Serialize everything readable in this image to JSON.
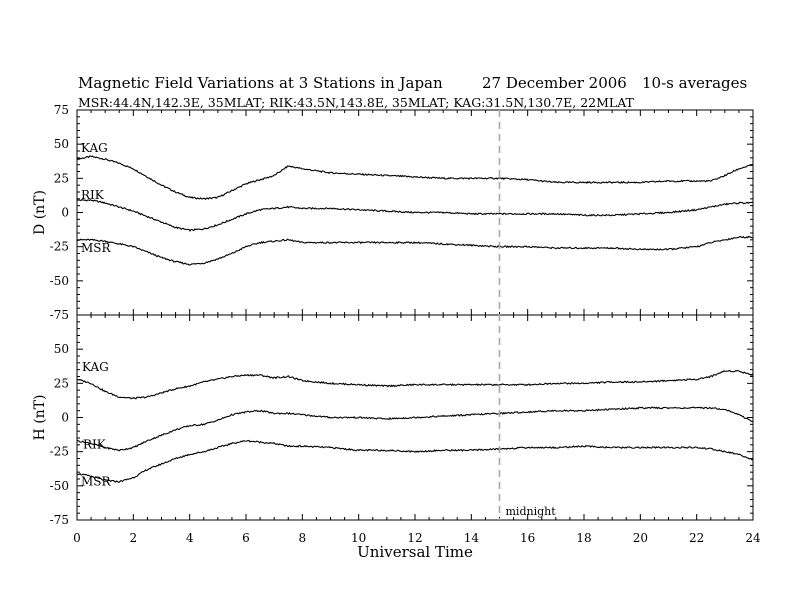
{
  "header": {
    "title": "Magnetic Field Variations at 3 Stations in Japan",
    "date": "27 December 2006",
    "averaging": "10-s averages",
    "stations_info": "MSR:44.4N,142.3E, 35MLAT;   RIK:43.5N,143.8E, 35MLAT;   KAG:31.5N,130.7E, 22MLAT"
  },
  "chart_data": [
    {
      "type": "line",
      "panel": "top",
      "ylabel": "D (nT)",
      "ylim": [
        -75,
        75
      ],
      "yticks": [
        -75,
        -50,
        -25,
        0,
        25,
        50,
        75
      ],
      "xlim": [
        0,
        24
      ],
      "x": [
        0,
        0.5,
        1,
        1.5,
        2,
        2.5,
        3,
        3.5,
        4,
        4.5,
        5,
        5.5,
        6,
        6.5,
        7,
        7.5,
        8,
        9,
        10,
        11,
        12,
        13,
        14,
        15,
        16,
        17,
        18,
        19,
        20,
        21,
        22,
        22.5,
        23,
        23.5,
        24
      ],
      "series": [
        {
          "name": "KAG",
          "values": [
            39,
            41,
            39,
            36,
            32,
            26,
            20,
            15,
            11,
            10,
            11,
            16,
            21,
            24,
            27,
            34,
            32,
            29,
            28,
            27,
            26,
            25,
            25,
            25,
            24,
            22,
            22,
            22,
            22,
            23,
            23,
            23,
            27,
            32,
            35
          ]
        },
        {
          "name": "RIK",
          "values": [
            9,
            9,
            7,
            4,
            1,
            -3,
            -7,
            -11,
            -13,
            -12,
            -9,
            -5,
            -1,
            2,
            3,
            4,
            3,
            3,
            2,
            1,
            0,
            0,
            -1,
            -1,
            -1,
            -1,
            -2,
            -2,
            -1,
            0,
            2,
            4,
            6,
            7,
            7
          ]
        },
        {
          "name": "MSR",
          "values": [
            -20,
            -20,
            -21,
            -23,
            -25,
            -29,
            -33,
            -36,
            -38,
            -37,
            -34,
            -30,
            -25,
            -22,
            -21,
            -20,
            -22,
            -22,
            -22,
            -22,
            -22,
            -23,
            -24,
            -25,
            -25,
            -26,
            -26,
            -26,
            -27,
            -27,
            -25,
            -22,
            -20,
            -18,
            -18
          ]
        }
      ],
      "annotations": []
    },
    {
      "type": "line",
      "panel": "bottom",
      "ylabel": "H (nT)",
      "ylim": [
        -75,
        75
      ],
      "yticks": [
        -75,
        -50,
        -25,
        0,
        25,
        50
      ],
      "xlim": [
        0,
        24
      ],
      "xticks": [
        0,
        2,
        4,
        6,
        8,
        10,
        12,
        14,
        16,
        18,
        20,
        22,
        24
      ],
      "xlabel": "Universal Time",
      "x": [
        0,
        0.5,
        1,
        1.5,
        2,
        2.5,
        3,
        3.5,
        4,
        4.5,
        5,
        5.5,
        6,
        6.5,
        7,
        7.5,
        8,
        9,
        10,
        11,
        12,
        13,
        14,
        15,
        16,
        17,
        18,
        19,
        20,
        21,
        22,
        22.5,
        23,
        23.5,
        24
      ],
      "series": [
        {
          "name": "KAG",
          "values": [
            28,
            25,
            19,
            15,
            14,
            15,
            18,
            21,
            23,
            26,
            28,
            30,
            31,
            31,
            29,
            30,
            27,
            25,
            24,
            23,
            24,
            24,
            24,
            24,
            24,
            25,
            25,
            26,
            26,
            27,
            28,
            30,
            34,
            34,
            31
          ]
        },
        {
          "name": "RIK",
          "values": [
            -17,
            -19,
            -22,
            -24,
            -22,
            -17,
            -13,
            -9,
            -6,
            -5,
            -2,
            2,
            4,
            5,
            3,
            3,
            2,
            0,
            0,
            -1,
            0,
            1,
            2,
            3,
            4,
            5,
            5,
            6,
            7,
            7,
            7,
            7,
            6,
            2,
            -3
          ]
        },
        {
          "name": "MSR",
          "values": [
            -41,
            -43,
            -46,
            -47,
            -44,
            -38,
            -34,
            -30,
            -27,
            -25,
            -22,
            -19,
            -17,
            -18,
            -19,
            -21,
            -21,
            -22,
            -24,
            -24,
            -25,
            -24,
            -24,
            -23,
            -22,
            -22,
            -21,
            -22,
            -22,
            -22,
            -22,
            -23,
            -25,
            -27,
            -31
          ]
        }
      ],
      "annotations": [
        {
          "text": "midnight",
          "x": 15
        }
      ]
    }
  ],
  "marker": {
    "x": 15,
    "style": "dashed",
    "color": "#a8a8a8"
  },
  "colors": {
    "line": "#000000",
    "axis": "#000000",
    "marker": "#a8a8a8"
  }
}
